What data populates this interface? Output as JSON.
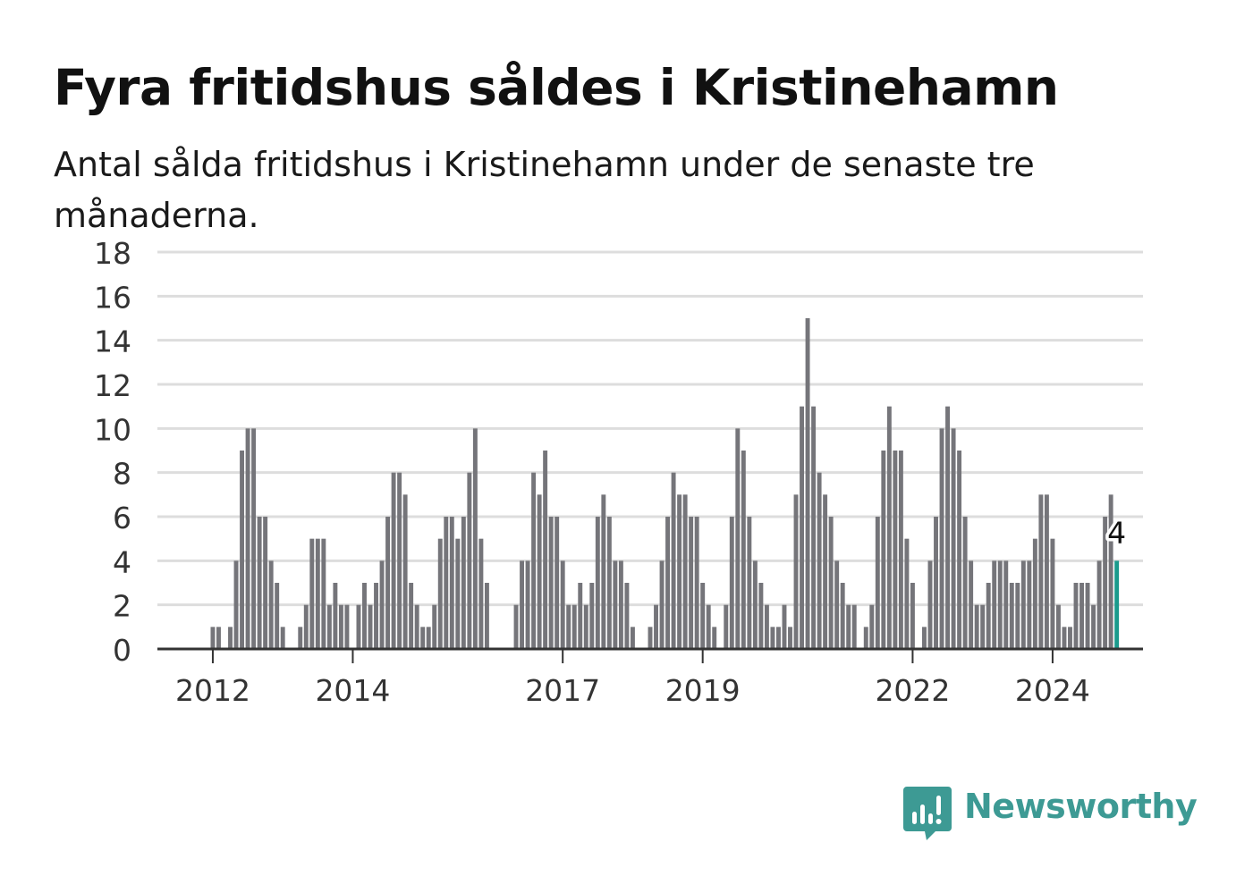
{
  "title": "Fyra fritidshus såldes i Kristinehamn",
  "subtitle": "Antal sålda fritidshus i Kristinehamn under de senaste tre månaderna.",
  "brand": {
    "name": "Newsworthy",
    "color": "#3d9a94"
  },
  "colors": {
    "bar": "#75757a",
    "highlight": "#1a9a8c",
    "grid": "#dddddd",
    "axis": "#333333"
  },
  "chart_data": {
    "type": "bar",
    "title": "Fyra fritidshus såldes i Kristinehamn",
    "subtitle": "Antal sålda fritidshus i Kristinehamn under de senaste tre månaderna.",
    "x_start": "2011-04",
    "x_end": "2025-04",
    "y_ticks": [
      0,
      2,
      4,
      6,
      8,
      10,
      12,
      14,
      16,
      18
    ],
    "ylim": [
      0,
      18
    ],
    "x_ticks": [
      {
        "label": "2012",
        "month": "2012-01"
      },
      {
        "label": "2014",
        "month": "2014-01"
      },
      {
        "label": "2017",
        "month": "2017-01"
      },
      {
        "label": "2019",
        "month": "2019-01"
      },
      {
        "label": "2022",
        "month": "2022-01"
      },
      {
        "label": "2024",
        "month": "2024-01"
      }
    ],
    "grid": true,
    "series": [
      {
        "start": "2012-01",
        "values": [
          1,
          1,
          0,
          1,
          4,
          9,
          10,
          10,
          6,
          6,
          4,
          3,
          1,
          0,
          0,
          1,
          2,
          5,
          5,
          5,
          2,
          3,
          2,
          2,
          0,
          2,
          3,
          2,
          3,
          4,
          6,
          8,
          8,
          7,
          3,
          2,
          1,
          1,
          2,
          5,
          6,
          6,
          5,
          6,
          8,
          10,
          5,
          3,
          0,
          0,
          0,
          0,
          2,
          4,
          4,
          8,
          7,
          9,
          6,
          6,
          4,
          2,
          2,
          3,
          2,
          3,
          6,
          7,
          6,
          4,
          4,
          3,
          1,
          0,
          0,
          1,
          2,
          4,
          6,
          8,
          7,
          7,
          6,
          6,
          3,
          2,
          1,
          0,
          2,
          6,
          10,
          9,
          6,
          4,
          3,
          2,
          1,
          1,
          2,
          1,
          7,
          11,
          15,
          11,
          8,
          7,
          6,
          4,
          3,
          2,
          2,
          0,
          1,
          2,
          6,
          9,
          11,
          9,
          9,
          5,
          3,
          0,
          1,
          4,
          6,
          10,
          11,
          10,
          9,
          6,
          4,
          2,
          2,
          3,
          4,
          4,
          4,
          3,
          3,
          4,
          4,
          5,
          7,
          7,
          5,
          2,
          1,
          1,
          3,
          3,
          3,
          2,
          4,
          6,
          7,
          4
        ]
      }
    ],
    "highlight": {
      "month": "2024-12",
      "value": 4,
      "label": "4"
    }
  }
}
